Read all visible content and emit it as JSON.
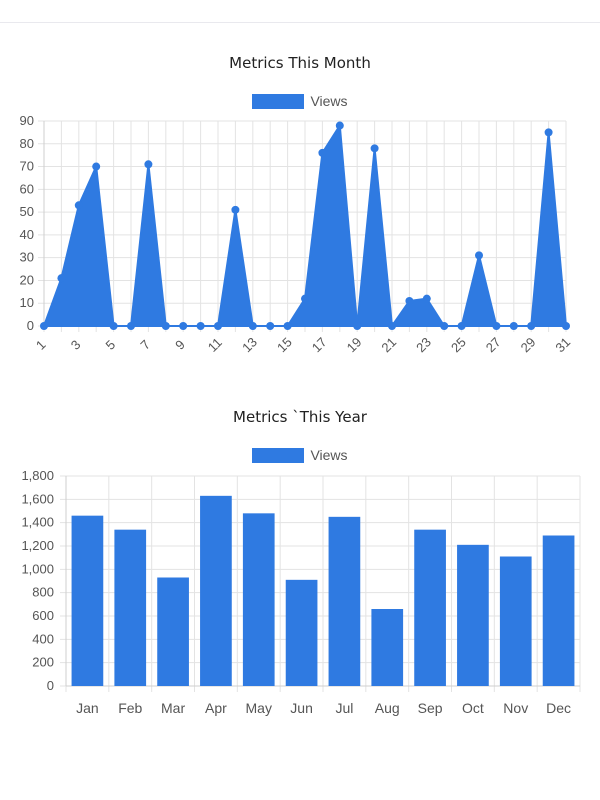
{
  "colors": {
    "series": "#2f7ae1",
    "grid": "#e3e3e3",
    "axis": "#cfcfcf"
  },
  "chart_data": [
    {
      "type": "area",
      "title": "Metrics This Month",
      "legend_position": "top",
      "grid": true,
      "ylim": [
        0,
        90
      ],
      "yticks": [
        0,
        10,
        20,
        30,
        40,
        50,
        60,
        70,
        80,
        90
      ],
      "xtick_labels": [
        "1",
        "3",
        "5",
        "7",
        "9",
        "11",
        "13",
        "15",
        "17",
        "19",
        "21",
        "23",
        "25",
        "27",
        "29",
        "31"
      ],
      "x": [
        1,
        2,
        3,
        4,
        5,
        6,
        7,
        8,
        9,
        10,
        11,
        12,
        13,
        14,
        15,
        16,
        17,
        18,
        19,
        20,
        21,
        22,
        23,
        24,
        25,
        26,
        27,
        28,
        29,
        30,
        31
      ],
      "series": [
        {
          "name": "Views",
          "values": [
            0,
            21,
            53,
            70,
            0,
            0,
            71,
            0,
            0,
            0,
            0,
            51,
            0,
            0,
            0,
            12,
            76,
            88,
            0,
            78,
            0,
            11,
            12,
            0,
            0,
            31,
            0,
            0,
            0,
            85,
            0
          ]
        }
      ]
    },
    {
      "type": "bar",
      "title": "Metrics `This Year",
      "legend_position": "top",
      "grid": true,
      "ylim": [
        0,
        1800
      ],
      "yticks": [
        0,
        200,
        400,
        600,
        800,
        1000,
        1200,
        1400,
        1600,
        1800
      ],
      "ytick_labels": [
        "0",
        "200",
        "400",
        "600",
        "800",
        "1,000",
        "1,200",
        "1,400",
        "1,600",
        "1,800"
      ],
      "categories": [
        "Jan",
        "Feb",
        "Mar",
        "Apr",
        "May",
        "Jun",
        "Jul",
        "Aug",
        "Sep",
        "Oct",
        "Nov",
        "Dec"
      ],
      "series": [
        {
          "name": "Views",
          "values": [
            1460,
            1340,
            930,
            1630,
            1480,
            910,
            1450,
            660,
            1340,
            1210,
            1110,
            1290
          ]
        }
      ]
    }
  ]
}
